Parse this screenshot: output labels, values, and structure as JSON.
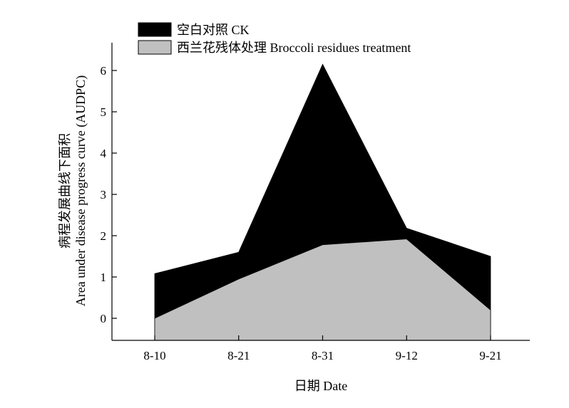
{
  "chart_data": {
    "type": "area",
    "title": "",
    "xlabel": "日期 Date",
    "ylabel_cn": "病程发展曲线下面积",
    "ylabel_en": "Area under disease progress curve (AUDPC)",
    "categories": [
      "8-10",
      "8-21",
      "8-31",
      "9-12",
      "9-21"
    ],
    "ylim": [
      -0.5,
      6.6
    ],
    "yticks": [
      0,
      1,
      2,
      3,
      4,
      5,
      6
    ],
    "grid": false,
    "legend_position": "top-left",
    "series": [
      {
        "name": "空白对照 CK",
        "values": [
          1.08,
          1.6,
          6.15,
          2.18,
          1.5
        ],
        "color": "#000000"
      },
      {
        "name": "西兰花残体处理 Broccoli residues treatment",
        "values": [
          0.0,
          0.95,
          1.78,
          1.92,
          0.2
        ],
        "color": "#c0c0c0"
      }
    ]
  }
}
